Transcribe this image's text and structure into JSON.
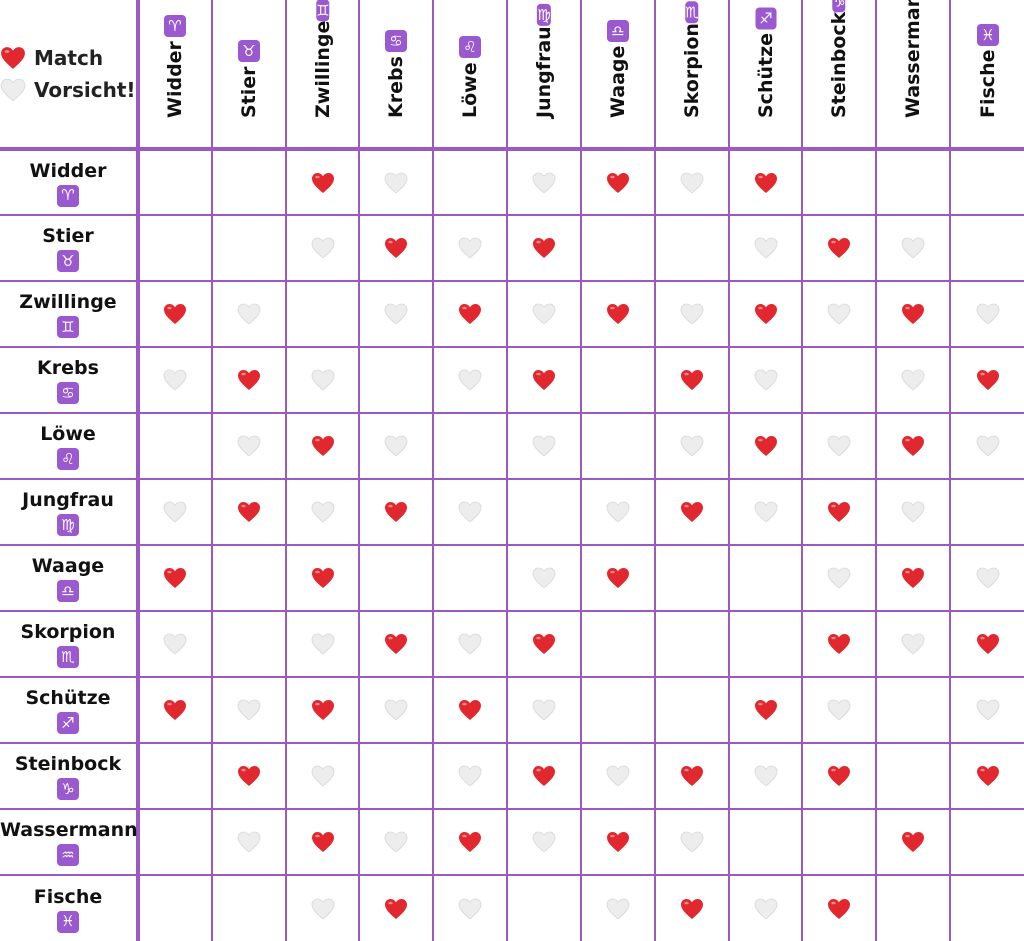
{
  "legend": [
    {
      "symbol": "red-heart",
      "label": "Match"
    },
    {
      "symbol": "white-heart",
      "label": "Vorsicht!"
    }
  ],
  "colors": {
    "border": "#9b59c4",
    "badge": "#9b59d0",
    "match_heart": "#e0282e",
    "caution_heart": "#ededed"
  },
  "signs": [
    {
      "name": "Widder",
      "glyph": "♈"
    },
    {
      "name": "Stier",
      "glyph": "♉"
    },
    {
      "name": "Zwillinge",
      "glyph": "♊"
    },
    {
      "name": "Krebs",
      "glyph": "♋"
    },
    {
      "name": "Löwe",
      "glyph": "♌"
    },
    {
      "name": "Jungfrau",
      "glyph": "♍"
    },
    {
      "name": "Waage",
      "glyph": "♎"
    },
    {
      "name": "Skorpion",
      "glyph": "♏"
    },
    {
      "name": "Schütze",
      "glyph": "♐"
    },
    {
      "name": "Steinbock",
      "glyph": "♑"
    },
    {
      "name": "Wassermann",
      "glyph": "♒"
    },
    {
      "name": "Fische",
      "glyph": "♓"
    }
  ],
  "matrix": [
    [
      "",
      "",
      "M",
      "V",
      "",
      "V",
      "M",
      "V",
      "M",
      "",
      "",
      ""
    ],
    [
      "",
      "",
      "V",
      "M",
      "V",
      "M",
      "",
      "",
      "V",
      "M",
      "V",
      ""
    ],
    [
      "M",
      "V",
      "",
      "V",
      "M",
      "V",
      "M",
      "V",
      "M",
      "V",
      "M",
      "V"
    ],
    [
      "V",
      "M",
      "V",
      "",
      "V",
      "M",
      "",
      "M",
      "V",
      "",
      "V",
      "M"
    ],
    [
      "",
      "V",
      "M",
      "V",
      "",
      "V",
      "",
      "V",
      "M",
      "V",
      "M",
      "V"
    ],
    [
      "V",
      "M",
      "V",
      "M",
      "V",
      "",
      "V",
      "M",
      "V",
      "M",
      "V",
      ""
    ],
    [
      "M",
      "",
      "M",
      "",
      "",
      "V",
      "M",
      "",
      "",
      "V",
      "M",
      "V"
    ],
    [
      "V",
      "",
      "V",
      "M",
      "V",
      "M",
      "",
      "",
      "",
      "M",
      "V",
      "M"
    ],
    [
      "M",
      "V",
      "M",
      "V",
      "M",
      "V",
      "",
      "",
      "M",
      "V",
      "",
      "V"
    ],
    [
      "",
      "M",
      "V",
      "",
      "V",
      "M",
      "V",
      "M",
      "V",
      "M",
      "",
      "M"
    ],
    [
      "",
      "V",
      "M",
      "V",
      "M",
      "V",
      "M",
      "V",
      "",
      "",
      "M",
      ""
    ],
    [
      "",
      "",
      "V",
      "M",
      "V",
      "",
      "V",
      "M",
      "V",
      "M",
      "",
      ""
    ]
  ]
}
